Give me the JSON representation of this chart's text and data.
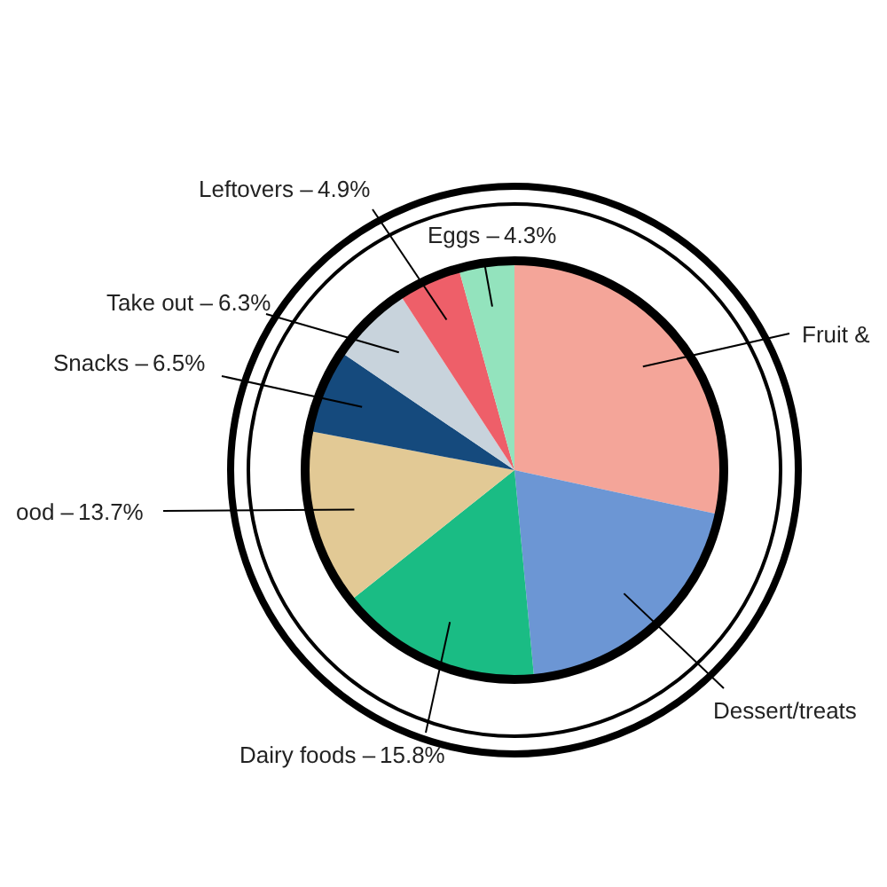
{
  "chart_data": {
    "type": "pie",
    "categories": [
      "Fruit &",
      "Dessert/treats",
      "Dairy foods –",
      "ood –",
      "Snacks –",
      "Take out –",
      "Leftovers –",
      "Eggs –"
    ],
    "values": [
      28.4,
      20.1,
      15.8,
      13.7,
      6.5,
      6.3,
      4.9,
      4.3
    ],
    "value_labels": [
      null,
      null,
      "15.8%",
      "13.7%",
      "6.5%",
      "6.3%",
      "4.9%",
      "4.3%"
    ],
    "colors": [
      "#f4a599",
      "#6c96d4",
      "#1abc84",
      "#e2c995",
      "#154a7d",
      "#c8d3dc",
      "#ee5f69",
      "#93e3bd"
    ]
  }
}
